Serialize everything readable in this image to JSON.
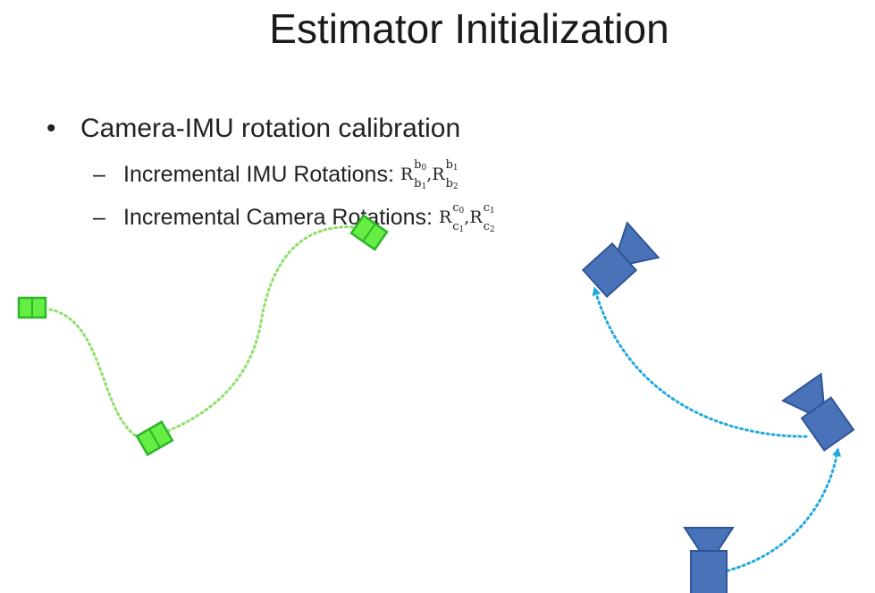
{
  "slide": {
    "title": "Estimator Initialization",
    "bullet": {
      "marker": "•",
      "text": "Camera-IMU rotation calibration"
    },
    "sub_items": [
      {
        "marker": "–",
        "text": "Incremental IMU Rotations:",
        "math": [
          {
            "sym": "R",
            "sup": "b",
            "sup_idx": "0",
            "sub": "b",
            "sub_idx": "1"
          },
          {
            "sym": "R",
            "sup": "b",
            "sup_idx": "1",
            "sub": "b",
            "sub_idx": "2"
          }
        ]
      },
      {
        "marker": "–",
        "text": "Incremental Camera Rotations:",
        "math": [
          {
            "sym": "R",
            "sup": "c",
            "sup_idx": "0",
            "sub": "c",
            "sub_idx": "1"
          },
          {
            "sym": "R",
            "sup": "c",
            "sup_idx": "1",
            "sub": "c",
            "sub_idx": "2"
          }
        ]
      }
    ],
    "math_separator": ",",
    "colors": {
      "imu_fill": "#66ee44",
      "imu_stroke": "#2fb52a",
      "imu_path": "#8ee06a",
      "camera_fill": "#4a72b8",
      "camera_stroke": "#2f5597",
      "camera_path": "#22aadd"
    }
  }
}
